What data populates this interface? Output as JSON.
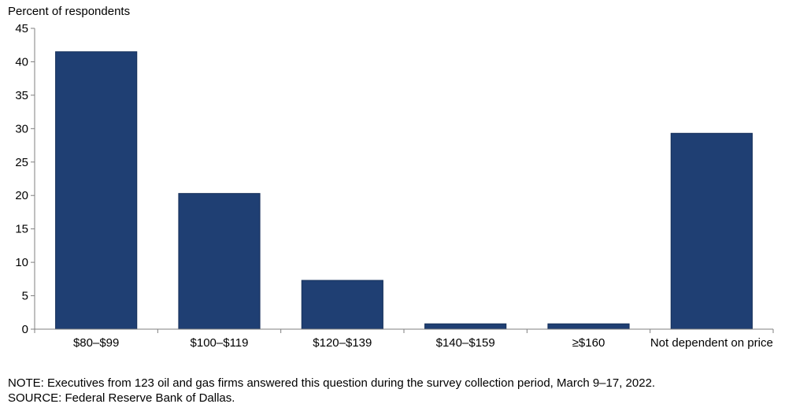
{
  "chart_data": {
    "type": "bar",
    "ylabel": "Percent of respondents",
    "xlabel": "",
    "categories": [
      "$80–$99",
      "$100–$119",
      "$120–$139",
      "$140–$159",
      "≥$160",
      "Not dependent on price"
    ],
    "values": [
      41.5,
      20.3,
      7.3,
      0.8,
      0.8,
      29.3
    ],
    "ylim": [
      0,
      45
    ],
    "yticks": [
      0,
      5,
      10,
      15,
      20,
      25,
      30,
      35,
      40,
      45
    ],
    "grid": false,
    "legend": "none",
    "bar_color": "#1f3f73"
  },
  "footer": {
    "note": "NOTE:  Executives  from  123  oil  and  gas  firms  answered  this  question  during  the  survey  collection  period,  March  9–17,  2022.",
    "source": "SOURCE:  Federal  Reserve  Bank  of  Dallas."
  }
}
